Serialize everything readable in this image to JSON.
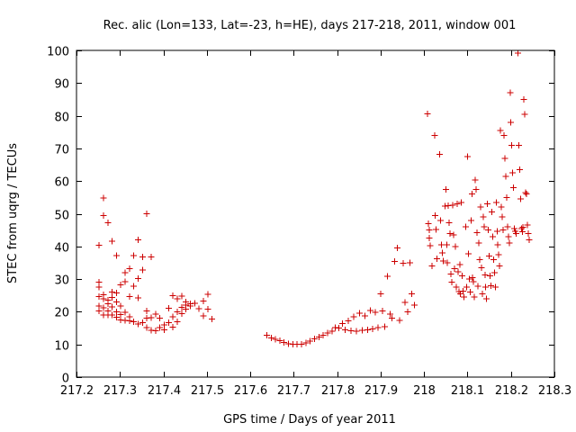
{
  "chart_data": {
    "type": "scatter",
    "title": "Rec. alic (Lon=133, Lat=-23, h=HE), days 217-218, 2011, window 001",
    "xlabel": "GPS time / Days of year 2011",
    "ylabel": "STEC from uqrg / TECUs",
    "xlim": [
      217.2,
      218.3
    ],
    "ylim": [
      0,
      100
    ],
    "x_ticks": [
      "217.2",
      "217.3",
      "217.4",
      "217.5",
      "217.6",
      "217.7",
      "217.8",
      "217.9",
      "218",
      "218.1",
      "218.2",
      "218.3"
    ],
    "y_ticks": [
      "0",
      "10",
      "20",
      "30",
      "40",
      "50",
      "60",
      "70",
      "80",
      "90",
      "100"
    ],
    "grid": false,
    "marker": "+",
    "color": "#cc0000",
    "points": [
      [
        217.252,
        40.3
      ],
      [
        217.252,
        29.1
      ],
      [
        217.252,
        27.5
      ],
      [
        217.252,
        24.6
      ],
      [
        217.252,
        21.8
      ],
      [
        217.252,
        20.2
      ],
      [
        217.262,
        54.8
      ],
      [
        217.262,
        49.5
      ],
      [
        217.262,
        25.2
      ],
      [
        217.262,
        24.0
      ],
      [
        217.262,
        21.2
      ],
      [
        217.262,
        19.0
      ],
      [
        217.272,
        47.2
      ],
      [
        217.272,
        23.5
      ],
      [
        217.272,
        22.4
      ],
      [
        217.272,
        20.2
      ],
      [
        217.272,
        19.0
      ],
      [
        217.282,
        41.6
      ],
      [
        217.282,
        26.0
      ],
      [
        217.282,
        24.4
      ],
      [
        217.282,
        21.5
      ],
      [
        217.282,
        19.0
      ],
      [
        217.292,
        37.2
      ],
      [
        217.292,
        25.8
      ],
      [
        217.292,
        23.0
      ],
      [
        217.292,
        20.0
      ],
      [
        217.292,
        18.3
      ],
      [
        217.302,
        28.2
      ],
      [
        217.302,
        21.7
      ],
      [
        217.302,
        19.2
      ],
      [
        217.302,
        17.5
      ],
      [
        217.312,
        32.0
      ],
      [
        217.312,
        29.2
      ],
      [
        217.312,
        19.8
      ],
      [
        217.312,
        17.4
      ],
      [
        217.322,
        33.2
      ],
      [
        217.322,
        24.7
      ],
      [
        217.322,
        18.5
      ],
      [
        217.322,
        17.2
      ],
      [
        217.332,
        37.2
      ],
      [
        217.332,
        27.8
      ],
      [
        217.332,
        17.0
      ],
      [
        217.342,
        42.0
      ],
      [
        217.342,
        30.2
      ],
      [
        217.342,
        24.2
      ],
      [
        217.342,
        16.3
      ],
      [
        217.352,
        36.8
      ],
      [
        217.352,
        32.8
      ],
      [
        217.352,
        16.6
      ],
      [
        217.362,
        50.0
      ],
      [
        217.362,
        20.3
      ],
      [
        217.362,
        18.0
      ],
      [
        217.362,
        15.2
      ],
      [
        217.372,
        36.8
      ],
      [
        217.372,
        18.2
      ],
      [
        217.372,
        14.3
      ],
      [
        217.382,
        19.3
      ],
      [
        217.382,
        14.2
      ],
      [
        217.392,
        18.0
      ],
      [
        217.392,
        15.2
      ],
      [
        217.402,
        16.0
      ],
      [
        217.402,
        14.5
      ],
      [
        217.412,
        21.1
      ],
      [
        217.412,
        16.6
      ],
      [
        217.422,
        25.0
      ],
      [
        217.422,
        18.5
      ],
      [
        217.422,
        15.3
      ],
      [
        217.432,
        24.0
      ],
      [
        217.432,
        20.0
      ],
      [
        217.432,
        17.0
      ],
      [
        217.442,
        24.8
      ],
      [
        217.442,
        21.3
      ],
      [
        217.442,
        19.4
      ],
      [
        217.452,
        23.0
      ],
      [
        217.452,
        22.0
      ],
      [
        217.452,
        20.8
      ],
      [
        217.462,
        22.5
      ],
      [
        217.462,
        21.8
      ],
      [
        217.472,
        22.6
      ],
      [
        217.482,
        21.0
      ],
      [
        217.492,
        23.3
      ],
      [
        217.492,
        18.8
      ],
      [
        217.502,
        25.3
      ],
      [
        217.502,
        20.8
      ],
      [
        217.512,
        17.8
      ],
      [
        217.638,
        12.8
      ],
      [
        217.648,
        12.0
      ],
      [
        217.658,
        11.6
      ],
      [
        217.668,
        11.2
      ],
      [
        217.678,
        10.6
      ],
      [
        217.688,
        10.2
      ],
      [
        217.698,
        10.0
      ],
      [
        217.708,
        10.0
      ],
      [
        217.718,
        10.1
      ],
      [
        217.728,
        10.4
      ],
      [
        217.738,
        11.0
      ],
      [
        217.748,
        11.7
      ],
      [
        217.758,
        12.2
      ],
      [
        217.768,
        12.8
      ],
      [
        217.778,
        13.5
      ],
      [
        217.788,
        14.1
      ],
      [
        217.796,
        15.2
      ],
      [
        217.804,
        15.0
      ],
      [
        217.812,
        16.4
      ],
      [
        217.818,
        14.4
      ],
      [
        217.826,
        17.2
      ],
      [
        217.832,
        14.2
      ],
      [
        217.838,
        18.4
      ],
      [
        217.844,
        14.1
      ],
      [
        217.852,
        19.6
      ],
      [
        217.858,
        14.3
      ],
      [
        217.864,
        18.8
      ],
      [
        217.87,
        14.5
      ],
      [
        217.876,
        20.4
      ],
      [
        217.882,
        14.7
      ],
      [
        217.888,
        19.8
      ],
      [
        217.894,
        15.1
      ],
      [
        217.9,
        25.5
      ],
      [
        217.904,
        20.2
      ],
      [
        217.91,
        15.4
      ],
      [
        217.916,
        30.8
      ],
      [
        217.922,
        19.3
      ],
      [
        217.926,
        18.0
      ],
      [
        217.932,
        35.4
      ],
      [
        217.938,
        39.5
      ],
      [
        217.944,
        17.4
      ],
      [
        217.952,
        34.8
      ],
      [
        217.956,
        22.8
      ],
      [
        217.962,
        20.0
      ],
      [
        217.968,
        35.0
      ],
      [
        217.972,
        25.5
      ],
      [
        217.978,
        22.0
      ],
      [
        218.008,
        80.6
      ],
      [
        218.01,
        47.0
      ],
      [
        218.012,
        45.0
      ],
      [
        218.012,
        42.5
      ],
      [
        218.014,
        40.2
      ],
      [
        218.018,
        34.0
      ],
      [
        218.024,
        74.0
      ],
      [
        218.026,
        49.5
      ],
      [
        218.028,
        45.2
      ],
      [
        218.03,
        36.2
      ],
      [
        218.036,
        68.2
      ],
      [
        218.038,
        48.0
      ],
      [
        218.04,
        40.5
      ],
      [
        218.042,
        38.0
      ],
      [
        218.044,
        35.5
      ],
      [
        218.048,
        52.3
      ],
      [
        218.05,
        57.5
      ],
      [
        218.052,
        40.5
      ],
      [
        218.054,
        35.0
      ],
      [
        218.056,
        52.5
      ],
      [
        218.058,
        47.3
      ],
      [
        218.06,
        44.0
      ],
      [
        218.062,
        31.5
      ],
      [
        218.064,
        29.0
      ],
      [
        218.066,
        52.6
      ],
      [
        218.068,
        43.5
      ],
      [
        218.07,
        33.2
      ],
      [
        218.072,
        40.0
      ],
      [
        218.074,
        27.5
      ],
      [
        218.076,
        53.0
      ],
      [
        218.078,
        32.2
      ],
      [
        218.08,
        26.2
      ],
      [
        218.082,
        34.5
      ],
      [
        218.084,
        25.5
      ],
      [
        218.086,
        53.5
      ],
      [
        218.088,
        31.0
      ],
      [
        218.09,
        26.3
      ],
      [
        218.092,
        24.5
      ],
      [
        218.096,
        46.0
      ],
      [
        218.098,
        27.5
      ],
      [
        218.1,
        67.5
      ],
      [
        218.102,
        37.7
      ],
      [
        218.104,
        30.0
      ],
      [
        218.106,
        26.0
      ],
      [
        218.108,
        48.0
      ],
      [
        218.11,
        56.0
      ],
      [
        218.112,
        30.5
      ],
      [
        218.114,
        29.2
      ],
      [
        218.116,
        24.5
      ],
      [
        218.118,
        60.3
      ],
      [
        218.12,
        57.5
      ],
      [
        218.122,
        44.2
      ],
      [
        218.124,
        27.8
      ],
      [
        218.126,
        41.0
      ],
      [
        218.128,
        36.0
      ],
      [
        218.13,
        52.0
      ],
      [
        218.132,
        33.5
      ],
      [
        218.134,
        25.5
      ],
      [
        218.136,
        49.0
      ],
      [
        218.138,
        46.0
      ],
      [
        218.14,
        31.2
      ],
      [
        218.142,
        27.6
      ],
      [
        218.144,
        24.0
      ],
      [
        218.146,
        53.0
      ],
      [
        218.148,
        45.0
      ],
      [
        218.15,
        37.0
      ],
      [
        218.152,
        31.0
      ],
      [
        218.154,
        28.0
      ],
      [
        218.156,
        50.5
      ],
      [
        218.158,
        43.0
      ],
      [
        218.16,
        36.0
      ],
      [
        218.162,
        32.0
      ],
      [
        218.164,
        27.5
      ],
      [
        218.166,
        53.5
      ],
      [
        218.168,
        44.6
      ],
      [
        218.17,
        40.5
      ],
      [
        218.172,
        37.5
      ],
      [
        218.174,
        34.0
      ],
      [
        218.176,
        75.5
      ],
      [
        218.178,
        52.0
      ],
      [
        218.18,
        49.0
      ],
      [
        218.182,
        45.0
      ],
      [
        218.184,
        74.0
      ],
      [
        218.186,
        67.0
      ],
      [
        218.188,
        61.5
      ],
      [
        218.19,
        55.0
      ],
      [
        218.192,
        46.0
      ],
      [
        218.194,
        43.0
      ],
      [
        218.196,
        41.0
      ],
      [
        218.198,
        87.0
      ],
      [
        218.2,
        78.0
      ],
      [
        218.202,
        71.0
      ],
      [
        218.204,
        62.5
      ],
      [
        218.206,
        58.0
      ],
      [
        218.208,
        45.5
      ],
      [
        218.21,
        44.6
      ],
      [
        218.212,
        44.0
      ],
      [
        218.216,
        99.2
      ],
      [
        218.218,
        71.0
      ],
      [
        218.22,
        63.5
      ],
      [
        218.222,
        54.5
      ],
      [
        218.224,
        45.5
      ],
      [
        218.226,
        44.5
      ],
      [
        218.228,
        45.8
      ],
      [
        218.23,
        85.0
      ],
      [
        218.232,
        80.5
      ],
      [
        218.234,
        56.5
      ],
      [
        218.236,
        56.0
      ],
      [
        218.238,
        46.5
      ],
      [
        218.24,
        44.0
      ],
      [
        218.242,
        42.0
      ]
    ]
  }
}
